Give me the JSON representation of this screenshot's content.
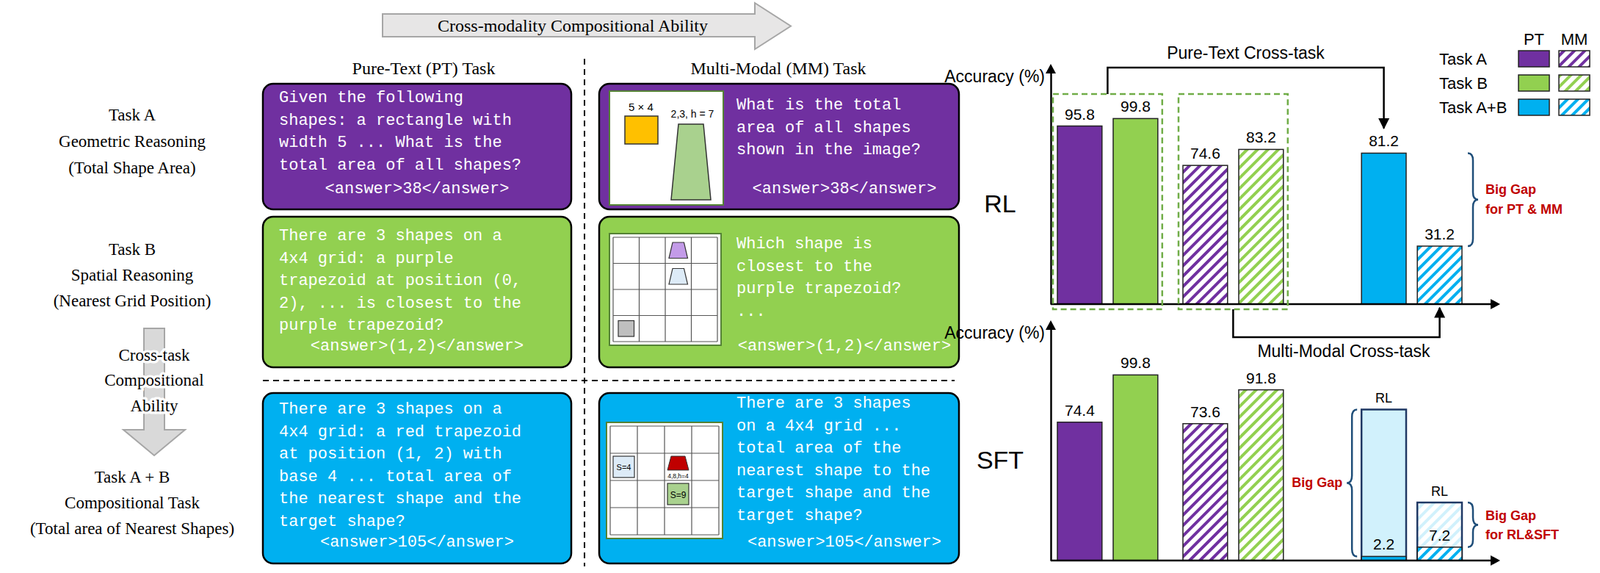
{
  "diagram": {
    "top_arrow": "Cross-modality Compositional Ability",
    "columns": [
      "Pure-Text (PT) Task",
      "Multi-Modal (MM) Task"
    ],
    "side_arrow": [
      "Cross-task",
      "Compositional",
      "Ability"
    ],
    "rows": [
      {
        "label": [
          "Task A",
          "Geometric Reasoning",
          "(Total Shape Area)"
        ],
        "color": "#7030a0",
        "pt": {
          "lines": [
            "Given the following",
            "shapes: a rectangle with",
            "width 5 ... What is the",
            "total area of all shapes?"
          ],
          "answer": "<answer>38</answer>"
        },
        "mm": {
          "lines": [
            "What is the total",
            "area of all shapes",
            "shown in the image?"
          ],
          "answer": "<answer>38</answer>",
          "image_texts": [
            "5 × 4",
            "2,3, h = 7"
          ]
        }
      },
      {
        "label": [
          "Task B",
          "Spatial Reasoning",
          "(Nearest Grid Position)"
        ],
        "color": "#92d050",
        "pt": {
          "lines": [
            "There are 3 shapes on a",
            "4x4 grid: a purple",
            "trapezoid at position (0,",
            "2), ... is closest to the",
            "purple trapezoid?"
          ],
          "answer": "<answer>(1,2)</answer>"
        },
        "mm": {
          "lines": [
            "Which shape is",
            "closest to the",
            "purple trapezoid?",
            "..."
          ],
          "answer": "<answer>(1,2)</answer>"
        }
      },
      {
        "label": [
          "Task A + B",
          "Compositional Task",
          "(Total area of Nearest Shapes)"
        ],
        "color": "#00b0f0",
        "pt": {
          "lines": [
            "There are 3 shapes on a",
            "4x4 grid: a red trapezoid",
            "at position (1, 2) with",
            "base 4 ... total area of",
            "the nearest shape and the",
            "target shape?"
          ],
          "answer": "<answer>105</answer>"
        },
        "mm": {
          "lines": [
            "There are 3 shapes",
            "on a 4x4 grid ...",
            "total area of the",
            "nearest shape to the",
            "target shape and the",
            "target shape?"
          ],
          "answer": "<answer>105</answer>",
          "image_texts": [
            "S=4",
            "4,8,h=4",
            "S=9"
          ]
        }
      }
    ],
    "key": {
      "columns": [
        "PT",
        "MM"
      ],
      "rows": [
        "Task A",
        "Task B",
        "Task A+B"
      ]
    }
  },
  "chart_data": [
    {
      "type": "bar",
      "title": "RL",
      "y_label": "Accuracy (%)",
      "categories": [
        null,
        null,
        null,
        null,
        null,
        null
      ],
      "values": [
        95.8,
        99.8,
        74.6,
        83.2,
        81.2,
        31.2
      ],
      "colors": [
        "#7030a0",
        "#92d050",
        "#7030a0",
        "#92d050",
        "#00b0f0",
        "#00b0f0"
      ],
      "modality": [
        "PT",
        "PT",
        "MM",
        "MM",
        "PT",
        "MM"
      ],
      "ylim": [
        0,
        128
      ],
      "tick_labels": false,
      "data_labels": true,
      "annotations": [
        "Pure-Text Cross-task",
        "Multi-Modal Cross-task",
        "Big Gap",
        "for PT & MM"
      ]
    },
    {
      "type": "bar",
      "title": "SFT",
      "y_label": "Accuracy (%)",
      "categories": [
        null,
        null,
        null,
        null,
        null,
        null
      ],
      "values": [
        74.4,
        99.8,
        73.6,
        91.8,
        2.2,
        7.2
      ],
      "colors": [
        "#7030a0",
        "#92d050",
        "#7030a0",
        "#92d050",
        "#00b0f0",
        "#00b0f0"
      ],
      "modality": [
        "PT",
        "PT",
        "MM",
        "MM",
        "PT",
        "MM"
      ],
      "reference": {
        "name": "RL",
        "values": [
          null,
          null,
          null,
          null,
          81.2,
          31.2
        ]
      },
      "ylim": [
        0,
        128
      ],
      "tick_labels": false,
      "data_labels": true,
      "annotations": [
        "Big Gap",
        "Big Gap",
        "for RL&SFT"
      ]
    }
  ]
}
